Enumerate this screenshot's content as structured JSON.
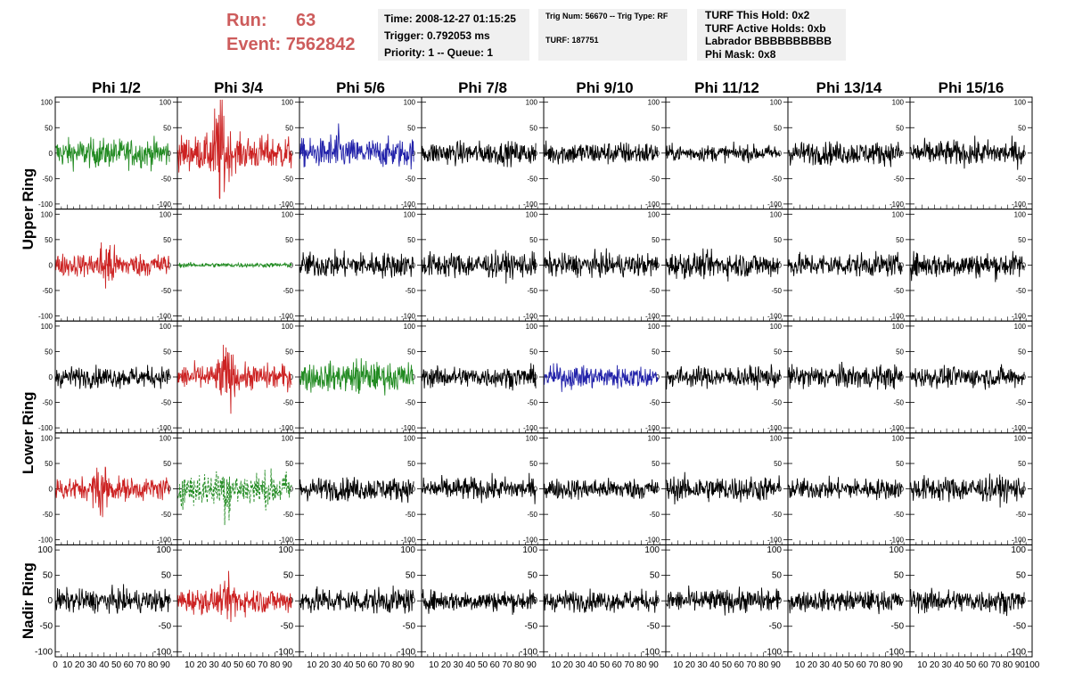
{
  "header": {
    "run_label": "Run:",
    "run_value": "63",
    "event_label": "Event:",
    "event_value": "7562842",
    "time_line": "Time: 2008-12-27 01:15:25",
    "trigger_line": "Trigger: 0.792053 ms",
    "priority_line": "Priority: 1 -- Queue: 1",
    "trig_line": "Trig Num: 56670 -- Trig Type: RF",
    "turf_line": "TURF: 187751",
    "turf_hold_line": "TURF This Hold: 0x2",
    "turf_active_line": "TURF Active Holds: 0xb",
    "labrador_line": "Labrador BBBBBBBBBB",
    "phi_mask_line": "Phi Mask: 0x8"
  },
  "colors": {
    "header_red": "#cd5c5c",
    "trace_black": "#000000",
    "trace_green": "#228b22",
    "trace_red": "#cc2222",
    "trace_blue": "#2222aa"
  },
  "chart_data": {
    "type": "line",
    "column_titles": [
      "Phi 1/2",
      "Phi 3/4",
      "Phi 5/6",
      "Phi 7/8",
      "Phi 9/10",
      "Phi 11/12",
      "Phi 13/14",
      "Phi 15/16"
    ],
    "ring_labels": [
      "Upper Ring",
      "Lower Ring",
      "Nadir Ring"
    ],
    "xlim": [
      0,
      100
    ],
    "ylim": [
      -110,
      110
    ],
    "y_ticks": [
      100,
      50,
      0,
      -50,
      -100
    ],
    "x_ticks": [
      0,
      10,
      20,
      30,
      40,
      50,
      60,
      70,
      80,
      90,
      100
    ],
    "rows": [
      {
        "ring": "Upper Ring",
        "panels": [
          {
            "color": "green",
            "amp": 25,
            "style": "solid"
          },
          {
            "color": "red",
            "amp": 30,
            "burst_center": 35,
            "burst_amp": 100,
            "style": "solid"
          },
          {
            "color": "blue",
            "amp": 25,
            "burst_center": 30,
            "burst_amp": 45,
            "style": "solid"
          },
          {
            "color": "black",
            "amp": 20,
            "style": "solid"
          },
          {
            "color": "black",
            "amp": 20,
            "style": "solid"
          },
          {
            "color": "black",
            "amp": 14,
            "style": "solid"
          },
          {
            "color": "black",
            "amp": 20,
            "style": "solid"
          },
          {
            "color": "black",
            "amp": 22,
            "style": "solid"
          }
        ]
      },
      {
        "ring": "Upper Ring",
        "panels": [
          {
            "color": "red",
            "amp": 20,
            "burst_center": 42,
            "burst_amp": 55,
            "style": "solid"
          },
          {
            "color": "green",
            "amp": 4,
            "style": "solid"
          },
          {
            "color": "black",
            "amp": 22,
            "style": "solid"
          },
          {
            "color": "black",
            "amp": 22,
            "style": "solid"
          },
          {
            "color": "black",
            "amp": 20,
            "style": "solid"
          },
          {
            "color": "black",
            "amp": 22,
            "style": "solid"
          },
          {
            "color": "black",
            "amp": 20,
            "style": "solid"
          },
          {
            "color": "black",
            "amp": 22,
            "style": "solid"
          }
        ]
      },
      {
        "ring": "Lower Ring",
        "panels": [
          {
            "color": "black",
            "amp": 18,
            "style": "solid"
          },
          {
            "color": "red",
            "amp": 22,
            "burst_center": 40,
            "burst_amp": 60,
            "style": "solid"
          },
          {
            "color": "green",
            "amp": 25,
            "burst_center": 50,
            "burst_amp": 40,
            "style": "solid"
          },
          {
            "color": "black",
            "amp": 18,
            "style": "solid"
          },
          {
            "color": "blue",
            "amp": 20,
            "style": "solid"
          },
          {
            "color": "black",
            "amp": 18,
            "style": "solid"
          },
          {
            "color": "black",
            "amp": 20,
            "style": "solid"
          },
          {
            "color": "black",
            "amp": 18,
            "style": "solid"
          }
        ]
      },
      {
        "ring": "Lower Ring",
        "panels": [
          {
            "color": "red",
            "amp": 20,
            "burst_center": 38,
            "burst_amp": 55,
            "style": "solid"
          },
          {
            "color": "green",
            "amp": 30,
            "burst_center": 40,
            "burst_amp": 55,
            "style": "dashed"
          },
          {
            "color": "black",
            "amp": 20,
            "style": "solid"
          },
          {
            "color": "black",
            "amp": 20,
            "style": "solid"
          },
          {
            "color": "black",
            "amp": 18,
            "style": "solid"
          },
          {
            "color": "black",
            "amp": 22,
            "style": "solid"
          },
          {
            "color": "black",
            "amp": 18,
            "style": "solid"
          },
          {
            "color": "black",
            "amp": 22,
            "style": "solid"
          }
        ]
      },
      {
        "ring": "Nadir Ring",
        "panels": [
          {
            "color": "black",
            "amp": 20,
            "style": "solid"
          },
          {
            "color": "red",
            "amp": 22,
            "burst_center": 45,
            "burst_amp": 45,
            "style": "solid"
          },
          {
            "color": "black",
            "amp": 22,
            "style": "solid"
          },
          {
            "color": "black",
            "amp": 18,
            "style": "solid"
          },
          {
            "color": "black",
            "amp": 18,
            "style": "solid"
          },
          {
            "color": "black",
            "amp": 20,
            "style": "solid"
          },
          {
            "color": "black",
            "amp": 18,
            "style": "solid"
          },
          {
            "color": "black",
            "amp": 20,
            "style": "solid"
          }
        ]
      }
    ]
  }
}
